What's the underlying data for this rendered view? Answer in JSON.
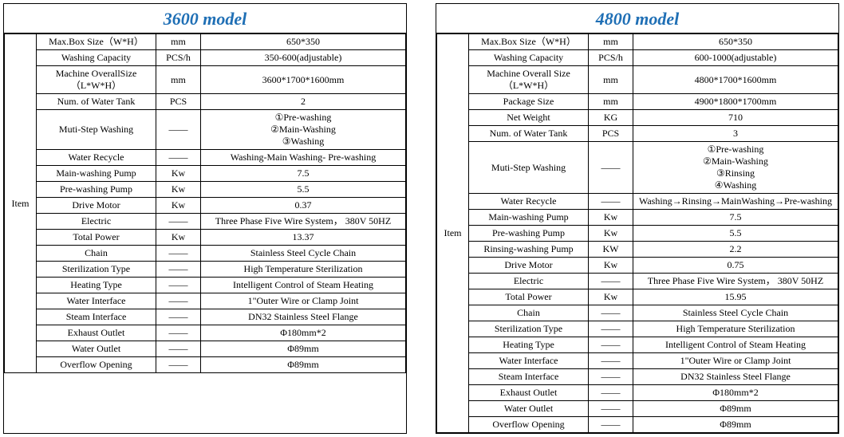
{
  "colors": {
    "title_color": "#1f6fb5",
    "border_color": "#000000",
    "text_color": "#000000",
    "background": "#ffffff"
  },
  "typography": {
    "title_font": "Times New Roman",
    "title_fontsize": 22,
    "title_style": "italic bold",
    "body_font": "Times New Roman",
    "body_fontsize": 12
  },
  "left": {
    "title": "3600 model",
    "rowhead": "Item",
    "rows": [
      {
        "label": "Max.Box Size（W*H）",
        "unit": "mm",
        "val": "650*350",
        "label_align": "left"
      },
      {
        "label": "Washing Capacity",
        "unit": "PCS/h",
        "val": "350-600(adjustable)",
        "label_align": "left"
      },
      {
        "label": "Machine OverallSize（L*W*H）",
        "unit": "mm",
        "val": "3600*1700*1600mm",
        "label_align": "left"
      },
      {
        "label": "Num. of Water Tank",
        "unit": "PCS",
        "val": "2",
        "label_align": "left"
      },
      {
        "label": "Muti-Step Washing",
        "unit": "——",
        "val": "①Pre-washing\n②Main-Washing\n③Washing"
      },
      {
        "label": "Water Recycle",
        "unit": "——",
        "val": "Washing-Main Washing- Pre-washing"
      },
      {
        "label": "Main-washing Pump",
        "unit": "Kw",
        "val": "7.5"
      },
      {
        "label": "Pre-washing Pump",
        "unit": "Kw",
        "val": "5.5"
      },
      {
        "label": "Drive Motor",
        "unit": "Kw",
        "val": "0.37"
      },
      {
        "label": "Electric",
        "unit": "——",
        "val": "Three Phase Five Wire System，  380V 50HZ",
        "label_align": "left"
      },
      {
        "label": "Total Power",
        "unit": "Kw",
        "val": "13.37"
      },
      {
        "label": "Chain",
        "unit": "——",
        "val": "Stainless Steel Cycle Chain"
      },
      {
        "label": "Sterilization Type",
        "unit": "——",
        "val": "High Temperature Sterilization"
      },
      {
        "label": "Heating Type",
        "unit": "——",
        "val": "Intelligent Control of Steam Heating"
      },
      {
        "label": "Water Interface",
        "unit": "——",
        "val": "1\"Outer Wire or Clamp Joint"
      },
      {
        "label": "Steam Interface",
        "unit": "——",
        "val": "DN32 Stainless Steel Flange"
      },
      {
        "label": "Exhaust Outlet",
        "unit": "——",
        "val": "Φ180mm*2"
      },
      {
        "label": "Water Outlet",
        "unit": "——",
        "val": "Φ89mm"
      },
      {
        "label": "Overflow Opening",
        "unit": "——",
        "val": "Φ89mm"
      }
    ]
  },
  "right": {
    "title": "4800 model",
    "rowhead": "Item",
    "rows": [
      {
        "label": "Max.Box Size（W*H）",
        "unit": "mm",
        "val": "650*350"
      },
      {
        "label": "Washing Capacity",
        "unit": "PCS/h",
        "val": "600-1000(adjustable)"
      },
      {
        "label": "Machine Overall Size（L*W*H）",
        "unit": "mm",
        "val": "4800*1700*1600mm"
      },
      {
        "label": "Package Size",
        "unit": "mm",
        "val": "4900*1800*1700mm"
      },
      {
        "label": "Net Weight",
        "unit": "KG",
        "val": "710"
      },
      {
        "label": "Num. of Water Tank",
        "unit": "PCS",
        "val": "3"
      },
      {
        "label": "Muti-Step Washing",
        "unit": "——",
        "val": "①Pre-washing\n②Main-Washing\n③Rinsing\n④Washing"
      },
      {
        "label": "Water Recycle",
        "unit": "——",
        "val": "Washing→Rinsing→MainWashing→Pre-washing"
      },
      {
        "label": "Main-washing Pump",
        "unit": "Kw",
        "val": "7.5"
      },
      {
        "label": "Pre-washing Pump",
        "unit": "Kw",
        "val": "5.5"
      },
      {
        "label": "Rinsing-washing Pump",
        "unit": "KW",
        "val": "2.2"
      },
      {
        "label": "Drive Motor",
        "unit": "Kw",
        "val": "0.75"
      },
      {
        "label": "Electric",
        "unit": "——",
        "val": "Three Phase Five Wire System， 380V 50HZ"
      },
      {
        "label": "Total Power",
        "unit": "Kw",
        "val": "15.95"
      },
      {
        "label": "Chain",
        "unit": "——",
        "val": "Stainless Steel Cycle Chain"
      },
      {
        "label": "Sterilization Type",
        "unit": "——",
        "val": "High Temperature Sterilization"
      },
      {
        "label": "Heating Type",
        "unit": "——",
        "val": "Intelligent Control of Steam Heating"
      },
      {
        "label": "Water Interface",
        "unit": "——",
        "val": "1\"Outer Wire or Clamp Joint"
      },
      {
        "label": "Steam Interface",
        "unit": "——",
        "val": "DN32 Stainless Steel Flange"
      },
      {
        "label": "Exhaust Outlet",
        "unit": "——",
        "val": "Φ180mm*2"
      },
      {
        "label": "Water Outlet",
        "unit": "——",
        "val": "Φ89mm"
      },
      {
        "label": "Overflow Opening",
        "unit": "——",
        "val": "Φ89mm"
      }
    ]
  }
}
